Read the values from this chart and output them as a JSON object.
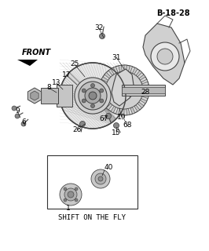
{
  "title": "B-18-28",
  "background_color": "#ffffff",
  "text_color": "#000000",
  "front_label": "FRONT",
  "shift_label": "SHIFT ON THE FLY",
  "figsize": [
    2.66,
    3.2
  ],
  "dpi": 100,
  "line_color": "#444444",
  "light_gray": "#aaaaaa",
  "mid_gray": "#888888",
  "dark_gray": "#333333"
}
